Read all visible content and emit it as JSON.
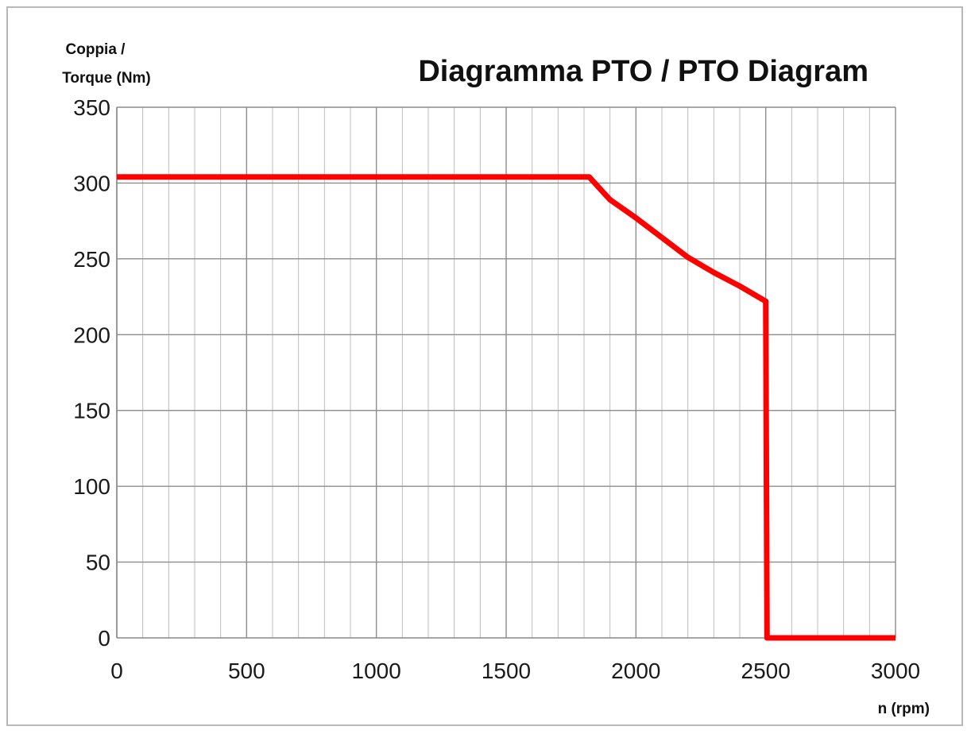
{
  "chart_data": {
    "type": "line",
    "title": "Diagramma PTO / PTO Diagram",
    "ylabel": [
      "Coppia /",
      "Torque (Nm)"
    ],
    "xlabel": "n (rpm)",
    "xlim": [
      0,
      3000
    ],
    "ylim": [
      0,
      350
    ],
    "x_ticks": [
      0,
      500,
      1000,
      1500,
      2000,
      2500,
      3000
    ],
    "y_ticks": [
      0,
      50,
      100,
      150,
      200,
      250,
      300,
      350
    ],
    "x_minor_step": 100,
    "grid": true,
    "series": [
      {
        "color": "#ff0000",
        "x": [
          0,
          1820,
          1900,
          2000,
          2100,
          2200,
          2300,
          2400,
          2500,
          2505,
          2510,
          3000
        ],
        "y": [
          304,
          304,
          289,
          277,
          264,
          251,
          241,
          232,
          222,
          0,
          0,
          0
        ]
      }
    ]
  }
}
